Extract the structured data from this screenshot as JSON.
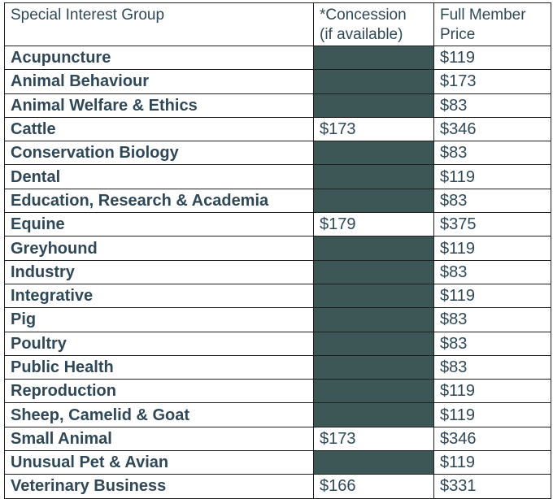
{
  "table": {
    "headers": {
      "group": "Special Interest Group",
      "concession_line1": "*Concession",
      "concession_line2": "(if available)",
      "full_line1": "Full Member",
      "full_line2": "Price"
    },
    "rows": [
      {
        "group": "Acupuncture",
        "concession": "",
        "full": "$119"
      },
      {
        "group": "Animal Behaviour",
        "concession": "",
        "full": "$173"
      },
      {
        "group": "Animal Welfare & Ethics",
        "concession": "",
        "full": "$83"
      },
      {
        "group": "Cattle",
        "concession": "$173",
        "full": "$346"
      },
      {
        "group": "Conservation Biology",
        "concession": "",
        "full": "$83"
      },
      {
        "group": "Dental",
        "concession": "",
        "full": "$119"
      },
      {
        "group": "Education, Research & Academia",
        "concession": "",
        "full": "$83"
      },
      {
        "group": "Equine",
        "concession": "$179",
        "full": "$375"
      },
      {
        "group": "Greyhound",
        "concession": "",
        "full": "$119"
      },
      {
        "group": "Industry",
        "concession": "",
        "full": "$83"
      },
      {
        "group": "Integrative",
        "concession": "",
        "full": "$119"
      },
      {
        "group": "Pig",
        "concession": "",
        "full": "$83"
      },
      {
        "group": "Poultry",
        "concession": "",
        "full": "$83"
      },
      {
        "group": "Public Health",
        "concession": "",
        "full": "$83"
      },
      {
        "group": "Reproduction",
        "concession": "",
        "full": "$119"
      },
      {
        "group": "Sheep, Camelid & Goat",
        "concession": "",
        "full": "$119"
      },
      {
        "group": "Small Animal",
        "concession": "$173",
        "full": "$346"
      },
      {
        "group": "Unusual Pet & Avian",
        "concession": "",
        "full": "$119"
      },
      {
        "group": "Veterinary Business",
        "concession": "$166",
        "full": "$331"
      }
    ],
    "colors": {
      "text": "#2f4858",
      "unavailable_fill": "#3d5757",
      "border": "#1f1f1f"
    }
  }
}
